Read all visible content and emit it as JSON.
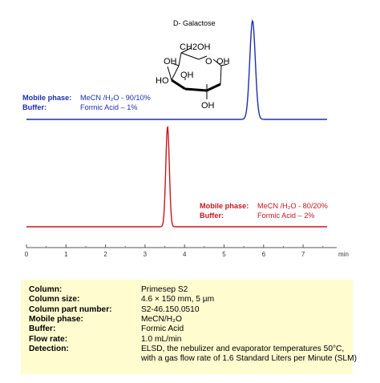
{
  "chart_data": {
    "type": "line",
    "xlabel": "min",
    "xlim": [
      0,
      8
    ],
    "x_ticks": [
      0,
      1,
      2,
      3,
      4,
      5,
      6,
      7
    ],
    "compound": {
      "name": "D- Galactose",
      "labels": {
        "ch2oh": "CH2OH",
        "oh_top_left": "OH",
        "oh_top_right": "OH",
        "oh_mid": "OH",
        "oh_left": "HO",
        "oh_bottom": "OH",
        "ring_o": "O"
      }
    },
    "series": [
      {
        "color": "#1a2fb0",
        "peak_x": 5.72,
        "peak_width_min": 0.07,
        "annotation": [
          {
            "label": "Mobile phase:",
            "value": "MeCN /H₂O - 90/10%"
          },
          {
            "label": "Buffer:",
            "value": "Formic Acid – 1%"
          }
        ]
      },
      {
        "color": "#c8161d",
        "peak_x": 3.57,
        "peak_width_min": 0.045,
        "annotation": [
          {
            "label": "Mobile phase:",
            "value": "MeCN /H₂O - 80/20%"
          },
          {
            "label": "Buffer:",
            "value": "Formic Acid – 2%"
          }
        ]
      }
    ]
  },
  "conditions": [
    {
      "label": "Column:",
      "value": "Primesep  S2"
    },
    {
      "label": "Column size:",
      "value": "4.6 × 150 mm, 5 µm"
    },
    {
      "label": "Column part number:",
      "value": "S2-46.150.0510"
    },
    {
      "label": "Mobile phase:",
      "value": "MeCN/H₂O"
    },
    {
      "label": "Buffer:",
      "value": "Formic Acid"
    },
    {
      "label": "Flow rate:",
      "value": "1.0 mL/min"
    },
    {
      "label": "Detection:",
      "value": "ELSD, the nebulizer and evaporator temperatures 50°C,"
    },
    {
      "label": "",
      "value": "with a gas flow rate of 1.6 Standard Liters per Minute (SLM)"
    }
  ]
}
